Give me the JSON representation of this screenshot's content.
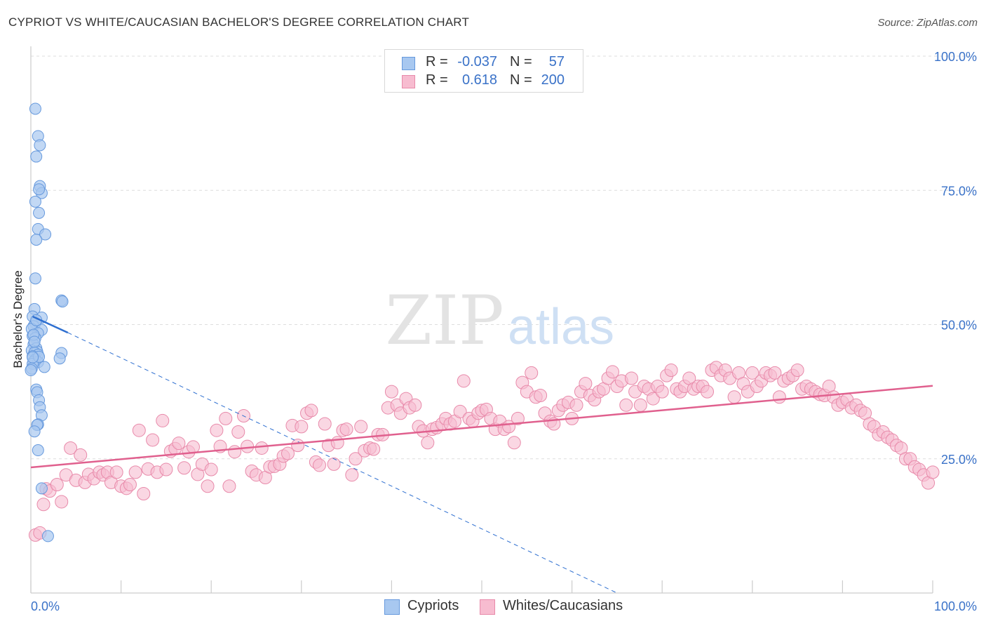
{
  "title": "CYPRIOT VS WHITE/CAUCASIAN BACHELOR'S DEGREE CORRELATION CHART",
  "source": "Source: ZipAtlas.com",
  "legend": {
    "rows": [
      {
        "r_label": "R =",
        "r_value": "-0.037",
        "n_label": "N =",
        "n_value": "57"
      },
      {
        "r_label": "R =",
        "r_value": "0.618",
        "n_label": "N =",
        "n_value": "200"
      }
    ]
  },
  "colors": {
    "blue_fill": "#a8c8f0",
    "blue_stroke": "#6699dd",
    "pink_fill": "#f7bcd0",
    "pink_stroke": "#e88aaa",
    "blue_line": "#2e6fd0",
    "pink_line": "#e0608e",
    "axis_text": "#3a72c8"
  },
  "watermark": {
    "zip": "ZIP",
    "atlas": "atlas"
  },
  "chart_data": {
    "type": "scatter",
    "title": "CYPRIOT VS WHITE/CAUCASIAN BACHELOR'S DEGREE CORRELATION CHART",
    "xlabel": "",
    "ylabel": "Bachelor's Degree",
    "xlim": [
      0,
      100
    ],
    "ylim": [
      0,
      100
    ],
    "x_tick_labels": [
      "0.0%",
      "100.0%"
    ],
    "y_tick_labels": [
      "25.0%",
      "50.0%",
      "75.0%",
      "100.0%"
    ],
    "y_ticks": [
      25,
      50,
      75,
      100
    ],
    "grid": true,
    "legend_position": "top-center",
    "series": [
      {
        "name": "Cypriots",
        "r": -0.037,
        "n": 57,
        "trend_solid": [
          [
            0.2,
            51.5
          ],
          [
            4.1,
            48.5
          ]
        ],
        "trend_dashed": [
          [
            4.1,
            48.5
          ],
          [
            65.0,
            0
          ]
        ],
        "points": [
          [
            0.5,
            90.2
          ],
          [
            0.8,
            85.1
          ],
          [
            1.0,
            83.4
          ],
          [
            0.6,
            81.3
          ],
          [
            1.0,
            75.8
          ],
          [
            1.2,
            74.5
          ],
          [
            0.9,
            75.2
          ],
          [
            0.5,
            72.9
          ],
          [
            0.9,
            70.8
          ],
          [
            0.8,
            67.8
          ],
          [
            1.6,
            66.8
          ],
          [
            0.6,
            65.8
          ],
          [
            0.5,
            58.6
          ],
          [
            3.4,
            54.5
          ],
          [
            3.5,
            54.3
          ],
          [
            0.4,
            52.9
          ],
          [
            0.2,
            51.5
          ],
          [
            1.2,
            51.3
          ],
          [
            0.5,
            50.3
          ],
          [
            0.3,
            49.7
          ],
          [
            0.1,
            49.2
          ],
          [
            1.2,
            49.0
          ],
          [
            0.8,
            48.4
          ],
          [
            0.2,
            47.9
          ],
          [
            0.5,
            47.5
          ],
          [
            0.3,
            46.3
          ],
          [
            0.6,
            45.6
          ],
          [
            0.1,
            45.2
          ],
          [
            0.7,
            45.0
          ],
          [
            0.4,
            44.8
          ],
          [
            3.4,
            44.7
          ],
          [
            0.8,
            44.4
          ],
          [
            0.2,
            44.1
          ],
          [
            3.2,
            43.7
          ],
          [
            0.5,
            43.5
          ],
          [
            0.3,
            43.1
          ],
          [
            0.8,
            43.0
          ],
          [
            0.2,
            42.7
          ],
          [
            1.5,
            42.1
          ],
          [
            0.1,
            41.8
          ],
          [
            0.0,
            41.5
          ],
          [
            0.6,
            37.9
          ],
          [
            0.7,
            37.4
          ],
          [
            0.9,
            35.9
          ],
          [
            1.0,
            34.6
          ],
          [
            1.2,
            33.1
          ],
          [
            0.8,
            31.4
          ],
          [
            0.7,
            31.3
          ],
          [
            0.4,
            30.1
          ],
          [
            0.8,
            26.6
          ],
          [
            1.2,
            19.5
          ],
          [
            1.9,
            10.6
          ],
          [
            0.3,
            48.1
          ],
          [
            0.6,
            50.8
          ],
          [
            0.4,
            46.8
          ],
          [
            0.9,
            44.0
          ],
          [
            0.2,
            43.9
          ]
        ]
      },
      {
        "name": "Whites/Caucasians",
        "r": 0.618,
        "n": 200,
        "trend": [
          [
            0,
            23.4
          ],
          [
            100,
            38.6
          ]
        ],
        "points": [
          [
            0.5,
            10.8
          ],
          [
            1.0,
            11.2
          ],
          [
            1.4,
            16.5
          ],
          [
            1.7,
            19.4
          ],
          [
            2.1,
            19.0
          ],
          [
            2.9,
            20.2
          ],
          [
            3.4,
            17.0
          ],
          [
            3.9,
            22.0
          ],
          [
            4.4,
            27.0
          ],
          [
            5.0,
            21.0
          ],
          [
            5.5,
            25.7
          ],
          [
            6.0,
            20.6
          ],
          [
            6.4,
            22.1
          ],
          [
            7.0,
            21.3
          ],
          [
            7.6,
            22.5
          ],
          [
            8.0,
            22.0
          ],
          [
            8.5,
            22.5
          ],
          [
            8.9,
            20.6
          ],
          [
            9.5,
            22.5
          ],
          [
            10.0,
            19.9
          ],
          [
            10.6,
            19.5
          ],
          [
            11.0,
            20.2
          ],
          [
            11.6,
            22.5
          ],
          [
            12.0,
            30.3
          ],
          [
            12.5,
            18.5
          ],
          [
            13.0,
            23.1
          ],
          [
            13.5,
            28.5
          ],
          [
            14.0,
            22.5
          ],
          [
            14.6,
            32.1
          ],
          [
            15.0,
            23.0
          ],
          [
            15.5,
            26.4
          ],
          [
            16.0,
            26.9
          ],
          [
            16.4,
            27.9
          ],
          [
            17.0,
            23.3
          ],
          [
            17.5,
            26.3
          ],
          [
            18.0,
            27.2
          ],
          [
            18.5,
            22.1
          ],
          [
            19.0,
            24.0
          ],
          [
            19.6,
            19.9
          ],
          [
            20.0,
            23.0
          ],
          [
            20.6,
            30.3
          ],
          [
            21.0,
            27.3
          ],
          [
            21.6,
            32.5
          ],
          [
            22.0,
            19.9
          ],
          [
            22.6,
            26.3
          ],
          [
            23.0,
            30.0
          ],
          [
            23.6,
            33.0
          ],
          [
            24.0,
            27.3
          ],
          [
            24.5,
            22.7
          ],
          [
            25.0,
            22.0
          ],
          [
            25.6,
            27.0
          ],
          [
            26.0,
            21.5
          ],
          [
            26.5,
            23.5
          ],
          [
            27.0,
            23.6
          ],
          [
            27.6,
            24.0
          ],
          [
            28.0,
            25.5
          ],
          [
            28.5,
            26.0
          ],
          [
            29.0,
            31.2
          ],
          [
            29.6,
            27.5
          ],
          [
            30.0,
            31.0
          ],
          [
            30.6,
            33.5
          ],
          [
            31.1,
            34.0
          ],
          [
            31.6,
            24.4
          ],
          [
            32.0,
            23.8
          ],
          [
            32.6,
            31.5
          ],
          [
            33.0,
            27.5
          ],
          [
            33.6,
            24.0
          ],
          [
            34.0,
            28.0
          ],
          [
            34.6,
            30.3
          ],
          [
            35.0,
            30.5
          ],
          [
            35.6,
            22.0
          ],
          [
            36.0,
            25.0
          ],
          [
            36.6,
            31.0
          ],
          [
            37.0,
            26.5
          ],
          [
            37.6,
            27.0
          ],
          [
            38.0,
            26.8
          ],
          [
            38.5,
            29.5
          ],
          [
            39.0,
            29.5
          ],
          [
            39.6,
            34.5
          ],
          [
            40.0,
            37.5
          ],
          [
            40.6,
            35.0
          ],
          [
            41.0,
            33.5
          ],
          [
            41.6,
            36.2
          ],
          [
            42.0,
            34.5
          ],
          [
            42.6,
            35.0
          ],
          [
            43.0,
            31.0
          ],
          [
            43.5,
            30.2
          ],
          [
            44.0,
            28.0
          ],
          [
            44.5,
            30.5
          ],
          [
            45.0,
            30.8
          ],
          [
            45.6,
            31.5
          ],
          [
            46.0,
            32.5
          ],
          [
            46.5,
            31.5
          ],
          [
            47.0,
            32.0
          ],
          [
            47.6,
            33.8
          ],
          [
            48.0,
            39.5
          ],
          [
            48.6,
            32.5
          ],
          [
            49.0,
            32.0
          ],
          [
            49.6,
            33.5
          ],
          [
            50.0,
            34.0
          ],
          [
            50.5,
            34.2
          ],
          [
            51.0,
            32.5
          ],
          [
            51.5,
            30.5
          ],
          [
            52.0,
            32.0
          ],
          [
            52.5,
            30.5
          ],
          [
            53.0,
            31.0
          ],
          [
            53.6,
            28.0
          ],
          [
            54.0,
            32.5
          ],
          [
            54.5,
            39.2
          ],
          [
            55.0,
            37.5
          ],
          [
            55.5,
            41.0
          ],
          [
            56.0,
            36.5
          ],
          [
            56.5,
            36.8
          ],
          [
            57.0,
            33.5
          ],
          [
            57.6,
            32.0
          ],
          [
            58.0,
            31.5
          ],
          [
            58.5,
            34.0
          ],
          [
            59.0,
            35.0
          ],
          [
            59.6,
            35.5
          ],
          [
            60.0,
            32.5
          ],
          [
            60.5,
            35.0
          ],
          [
            61.0,
            37.5
          ],
          [
            61.5,
            39.0
          ],
          [
            62.0,
            36.8
          ],
          [
            62.5,
            36.0
          ],
          [
            63.0,
            37.5
          ],
          [
            63.5,
            38.0
          ],
          [
            64.0,
            40.0
          ],
          [
            64.5,
            41.2
          ],
          [
            65.0,
            38.5
          ],
          [
            65.5,
            39.5
          ],
          [
            66.0,
            35.0
          ],
          [
            66.6,
            40.0
          ],
          [
            67.0,
            37.5
          ],
          [
            67.6,
            35.0
          ],
          [
            68.0,
            38.5
          ],
          [
            68.5,
            38.0
          ],
          [
            69.0,
            36.2
          ],
          [
            69.5,
            38.5
          ],
          [
            70.0,
            37.5
          ],
          [
            70.5,
            40.5
          ],
          [
            71.0,
            41.5
          ],
          [
            71.6,
            38.0
          ],
          [
            72.0,
            37.5
          ],
          [
            72.5,
            38.5
          ],
          [
            73.0,
            40.0
          ],
          [
            73.5,
            38.0
          ],
          [
            74.0,
            38.5
          ],
          [
            74.5,
            38.5
          ],
          [
            75.0,
            37.5
          ],
          [
            75.5,
            41.5
          ],
          [
            76.0,
            42.0
          ],
          [
            76.5,
            40.5
          ],
          [
            77.0,
            41.5
          ],
          [
            77.5,
            40.0
          ],
          [
            78.0,
            36.5
          ],
          [
            78.5,
            41.0
          ],
          [
            79.0,
            39.0
          ],
          [
            79.5,
            37.5
          ],
          [
            80.0,
            41.0
          ],
          [
            80.5,
            38.5
          ],
          [
            81.0,
            39.5
          ],
          [
            81.5,
            41.0
          ],
          [
            82.0,
            40.5
          ],
          [
            82.5,
            41.0
          ],
          [
            83.0,
            36.5
          ],
          [
            83.5,
            39.5
          ],
          [
            84.0,
            40.0
          ],
          [
            84.5,
            40.5
          ],
          [
            85.0,
            41.5
          ],
          [
            85.5,
            38.0
          ],
          [
            86.0,
            38.5
          ],
          [
            86.5,
            38.0
          ],
          [
            87.0,
            37.5
          ],
          [
            87.5,
            37.0
          ],
          [
            88.0,
            36.8
          ],
          [
            88.5,
            38.5
          ],
          [
            89.0,
            36.5
          ],
          [
            89.5,
            35.0
          ],
          [
            90.0,
            35.5
          ],
          [
            90.5,
            36.0
          ],
          [
            91.0,
            34.5
          ],
          [
            91.5,
            35.0
          ],
          [
            92.0,
            34.0
          ],
          [
            92.5,
            33.5
          ],
          [
            93.0,
            31.5
          ],
          [
            93.5,
            31.0
          ],
          [
            94.0,
            29.5
          ],
          [
            94.5,
            30.0
          ],
          [
            95.0,
            29.0
          ],
          [
            95.5,
            28.5
          ],
          [
            96.0,
            27.5
          ],
          [
            96.5,
            27.0
          ],
          [
            97.0,
            25.0
          ],
          [
            97.5,
            25.0
          ],
          [
            98.0,
            23.5
          ],
          [
            98.5,
            23.0
          ],
          [
            99.0,
            22.0
          ],
          [
            99.5,
            20.5
          ],
          [
            100.0,
            22.5
          ]
        ]
      }
    ]
  },
  "bottom_legend": {
    "series1": "Cypriots",
    "series2": "Whites/Caucasians"
  }
}
